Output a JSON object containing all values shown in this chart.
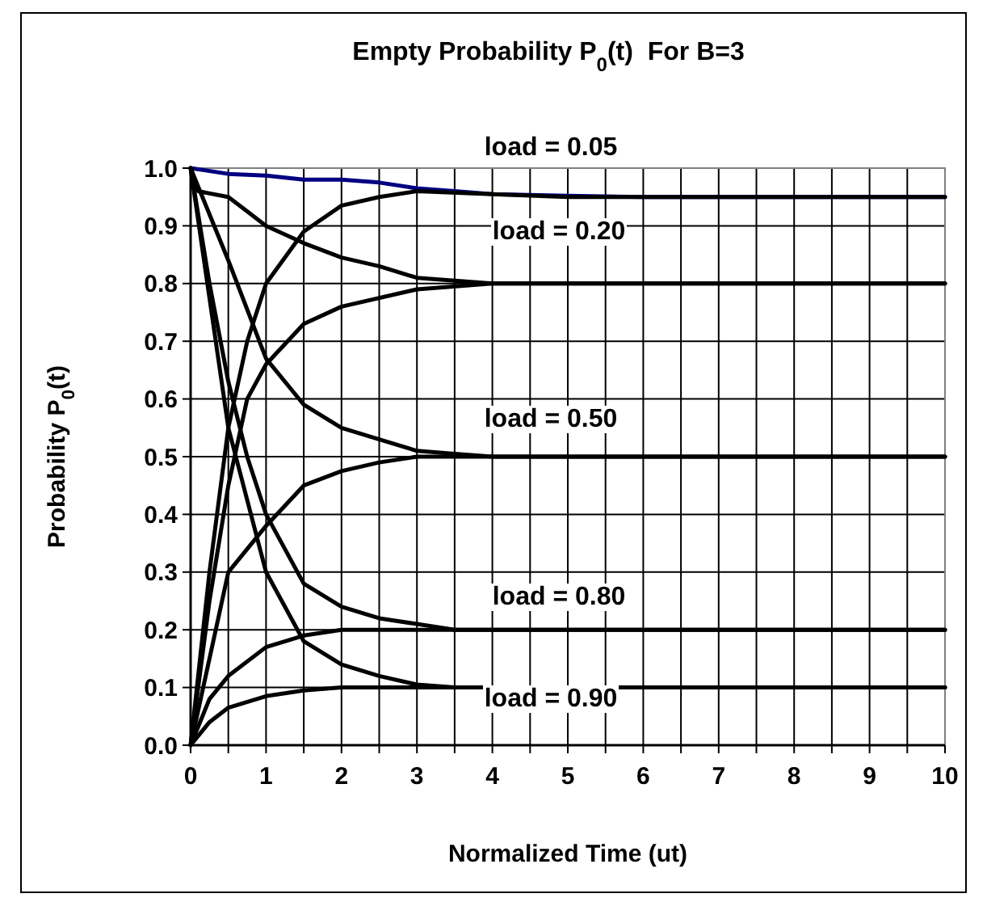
{
  "chart_data": {
    "type": "line",
    "title": "Empty Probability P$_{0}$(t)  For B=3",
    "xlabel": "Normalized Time (ut)",
    "ylabel": "Probability P$_{0}$(t)",
    "xlim": [
      0,
      10
    ],
    "xticks": [
      0,
      {
        "value": 0.5,
        "label": null
      },
      1,
      {
        "value": 1.5,
        "label": null
      },
      2,
      {
        "value": 2.5,
        "label": null
      },
      3,
      {
        "value": 3.5,
        "label": null
      },
      4,
      {
        "value": 4.5,
        "label": null
      },
      5,
      {
        "value": 5.5,
        "label": null
      },
      6,
      {
        "value": 6.5,
        "label": null
      },
      7,
      {
        "value": 7.5,
        "label": null
      },
      8,
      {
        "value": 8.5,
        "label": null
      },
      9,
      {
        "value": 9.5,
        "label": null
      },
      10
    ],
    "ylim": [
      0,
      1
    ],
    "yticks": [
      {
        "value": 0,
        "label": "0.0"
      },
      0.1,
      0.2,
      0.3,
      0.4,
      0.5,
      0.6,
      0.7,
      0.8,
      0.9,
      {
        "value": 1,
        "label": "1.0"
      }
    ],
    "grid": true,
    "marker": "none",
    "line_style": "solid",
    "series": [
      {
        "color": "#000080",
        "x": [
          0,
          0.5,
          1,
          1.5,
          2,
          2.5,
          3,
          3.5,
          4,
          5,
          6,
          10
        ],
        "values": [
          1,
          0.99,
          0.987,
          0.98,
          0.98,
          0.975,
          0.965,
          0.96,
          0.955,
          0.952,
          0.95,
          0.95
        ]
      },
      {
        "color": "#000000",
        "x": [
          0,
          0.25,
          0.5,
          0.75,
          1,
          1.5,
          2,
          2.5,
          3,
          4,
          5,
          10
        ],
        "values": [
          0,
          0.3,
          0.55,
          0.7,
          0.8,
          0.89,
          0.935,
          0.95,
          0.96,
          0.955,
          0.95,
          0.95
        ]
      },
      {
        "color": "#000000",
        "x": [
          0,
          0.1,
          0.5,
          0.75,
          1,
          1.5,
          2,
          2.5,
          3,
          3.5,
          4,
          10
        ],
        "values": [
          1,
          0.96,
          0.95,
          0.925,
          0.9,
          0.87,
          0.845,
          0.83,
          0.81,
          0.805,
          0.8,
          0.8
        ]
      },
      {
        "color": "#000000",
        "x": [
          0,
          0.25,
          0.5,
          0.75,
          1,
          1.5,
          2,
          3,
          4,
          10
        ],
        "values": [
          0,
          0.25,
          0.45,
          0.6,
          0.66,
          0.73,
          0.76,
          0.79,
          0.8,
          0.8
        ]
      },
      {
        "color": "#000000",
        "x": [
          0,
          0.5,
          1,
          1.5,
          2,
          2.5,
          3,
          3.5,
          4,
          10
        ],
        "values": [
          1,
          0.84,
          0.67,
          0.59,
          0.55,
          0.53,
          0.51,
          0.505,
          0.5,
          0.5
        ]
      },
      {
        "color": "#000000",
        "x": [
          0,
          0.5,
          1,
          1.5,
          2,
          2.5,
          3,
          10
        ],
        "values": [
          0,
          0.3,
          0.38,
          0.45,
          0.475,
          0.49,
          0.5,
          0.5
        ]
      },
      {
        "color": "#000000",
        "x": [
          0,
          0.25,
          0.5,
          0.75,
          1,
          1.5,
          2,
          2.5,
          3,
          3.5,
          10
        ],
        "values": [
          1,
          0.8,
          0.63,
          0.5,
          0.4,
          0.28,
          0.24,
          0.22,
          0.21,
          0.2,
          0.2
        ]
      },
      {
        "color": "#000000",
        "x": [
          0,
          0.25,
          0.5,
          1,
          1.5,
          2,
          10
        ],
        "values": [
          0,
          0.08,
          0.12,
          0.17,
          0.19,
          0.2,
          0.2
        ]
      },
      {
        "color": "#000000",
        "x": [
          0,
          0.5,
          1,
          1.5,
          2,
          2.5,
          3,
          3.5,
          10
        ],
        "values": [
          1,
          0.55,
          0.3,
          0.18,
          0.14,
          0.12,
          0.105,
          0.1,
          0.1
        ]
      },
      {
        "color": "#000000",
        "x": [
          0,
          0.25,
          0.5,
          1,
          1.5,
          2,
          10
        ],
        "values": [
          0,
          0.04,
          0.065,
          0.085,
          0.095,
          0.1,
          0.1
        ]
      }
    ],
    "annotations": [
      "load = 0.05",
      "load = 0.20",
      "load = 0.50",
      "load = 0.80",
      "load = 0.90"
    ]
  }
}
